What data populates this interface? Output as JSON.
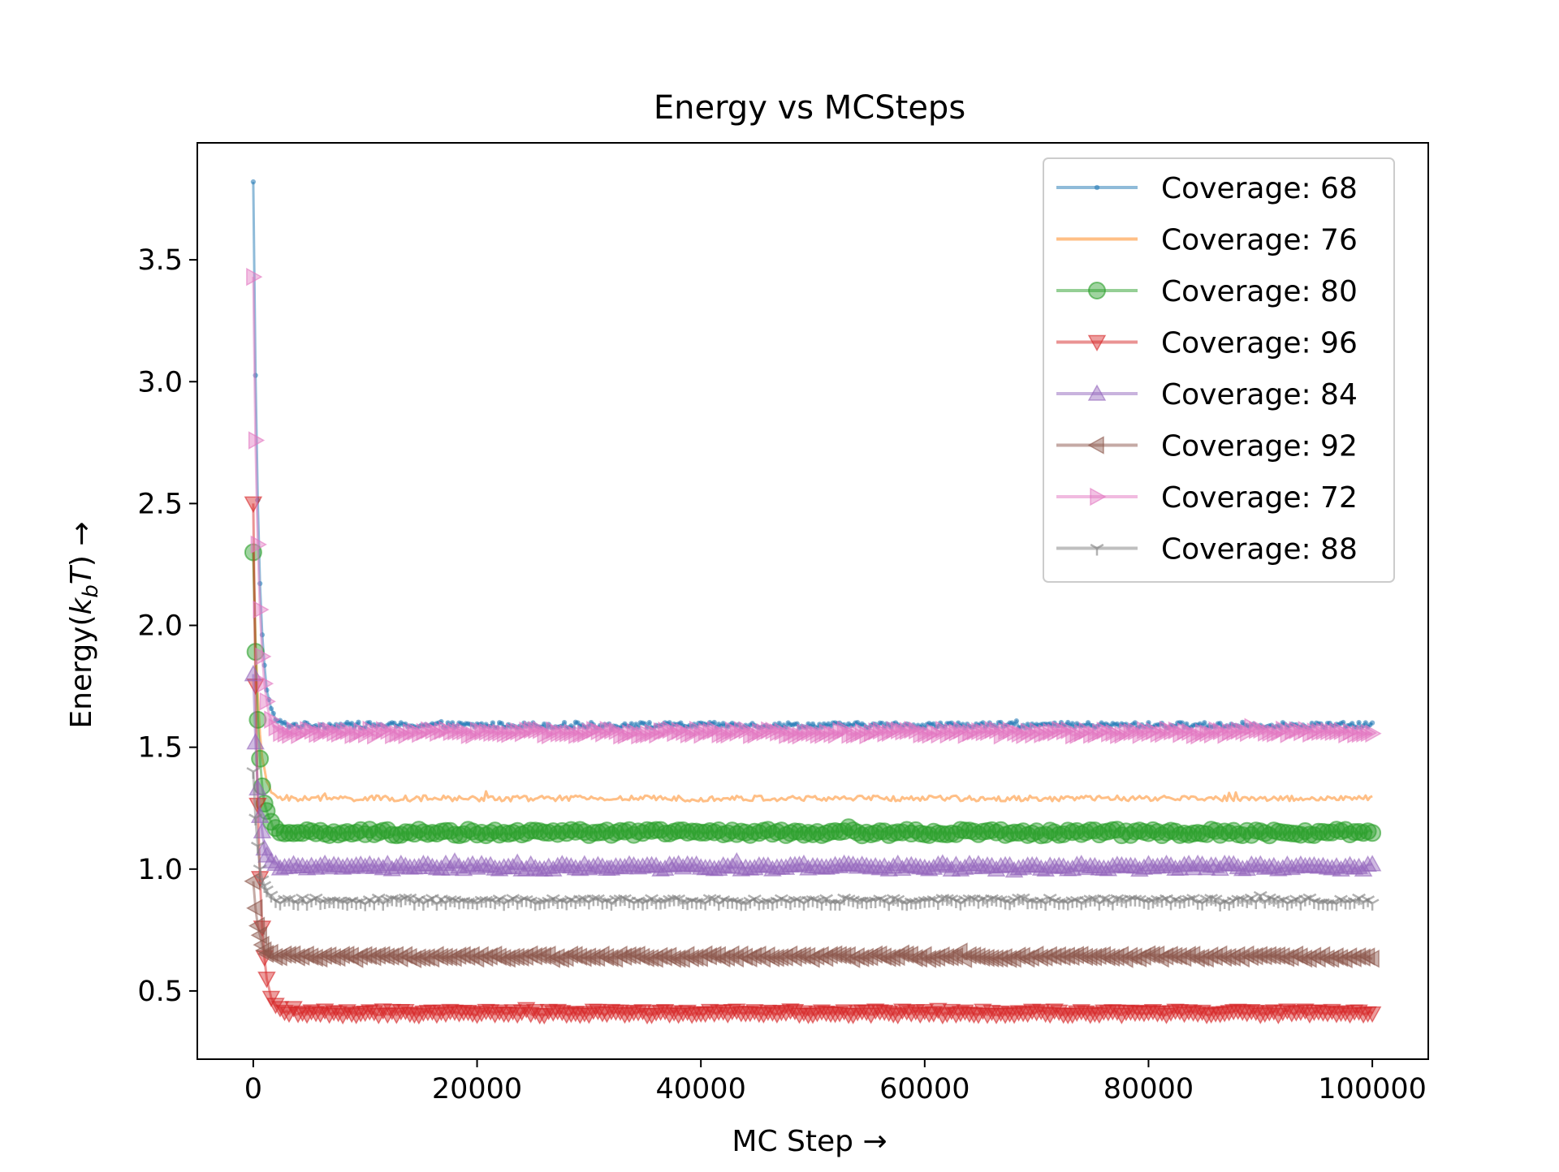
{
  "chart_data": {
    "type": "line",
    "title": "Energy vs MCSteps",
    "xlabel": "MC Step →",
    "ylabel_prefix": "Energy(",
    "ylabel_var": "k",
    "ylabel_sub": "b",
    "ylabel_var2": "T",
    "ylabel_suffix": ") →",
    "xlim": [
      -5000,
      105000
    ],
    "ylim": [
      0.22,
      3.98
    ],
    "xticks": [
      0,
      20000,
      40000,
      60000,
      80000,
      100000
    ],
    "xtick_labels": [
      "0",
      "20000",
      "40000",
      "60000",
      "80000",
      "100000"
    ],
    "yticks": [
      0.5,
      1.0,
      1.5,
      2.0,
      2.5,
      3.0,
      3.5
    ],
    "ytick_labels": [
      "0.5",
      "1.0",
      "1.5",
      "2.0",
      "2.5",
      "3.0",
      "3.5"
    ],
    "grid": false,
    "legend_position": "top-right",
    "series": [
      {
        "name": "Coverage: 68",
        "color": "#1f77b4",
        "marker": "point",
        "start": 3.82,
        "plateau": 1.59,
        "noise": 0.012
      },
      {
        "name": "Coverage: 76",
        "color": "#ff7f0e",
        "marker": "none",
        "start": 2.3,
        "plateau": 1.29,
        "noise": 0.012
      },
      {
        "name": "Coverage: 80",
        "color": "#2ca02c",
        "marker": "circle",
        "start": 2.3,
        "plateau": 1.15,
        "noise": 0.012
      },
      {
        "name": "Coverage: 96",
        "color": "#d62728",
        "marker": "triangle-down",
        "start": 2.5,
        "plateau": 0.41,
        "noise": 0.01
      },
      {
        "name": "Coverage: 84",
        "color": "#9467bd",
        "marker": "triangle-up",
        "start": 1.8,
        "plateau": 1.01,
        "noise": 0.012
      },
      {
        "name": "Coverage: 92",
        "color": "#8c564b",
        "marker": "triangle-left",
        "start": 0.95,
        "plateau": 0.64,
        "noise": 0.01
      },
      {
        "name": "Coverage: 72",
        "color": "#e377c2",
        "marker": "triangle-right",
        "start": 3.43,
        "plateau": 1.56,
        "noise": 0.012
      },
      {
        "name": "Coverage: 88",
        "color": "#7f7f7f",
        "marker": "tri-down",
        "start": 1.4,
        "plateau": 0.87,
        "noise": 0.012
      }
    ]
  }
}
